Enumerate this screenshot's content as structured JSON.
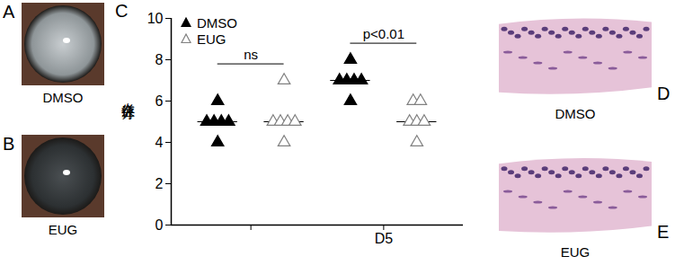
{
  "figure": {
    "photos": [
      {
        "letter": "A",
        "caption": "DMSO"
      },
      {
        "letter": "B",
        "caption": "EUG"
      }
    ],
    "chart_letter": "C",
    "histology": [
      {
        "letter": "D",
        "caption": "DMSO"
      },
      {
        "letter": "E",
        "caption": "EUG"
      }
    ]
  },
  "chart_data": {
    "type": "scatter",
    "ylabel": "炎症评分",
    "categories": [
      null,
      "D5"
    ],
    "series": [
      {
        "name": "DMSO",
        "color": "#000000",
        "marker": "triangle",
        "values": [
          [
            6,
            5,
            5,
            5,
            5,
            4
          ],
          [
            8,
            7,
            7,
            7,
            7,
            6
          ]
        ]
      },
      {
        "name": "EUG",
        "color": "#808080",
        "marker": "triangle-open",
        "values": [
          [
            7,
            5,
            5,
            5,
            5,
            4
          ],
          [
            6,
            6,
            5,
            5,
            5,
            4
          ]
        ]
      }
    ],
    "annotations": [
      "ns",
      "p<0.01"
    ],
    "ylim": [
      0,
      10
    ],
    "yticks": [
      0,
      2,
      4,
      6,
      8,
      10
    ],
    "grid": false,
    "legend": "top-left"
  }
}
